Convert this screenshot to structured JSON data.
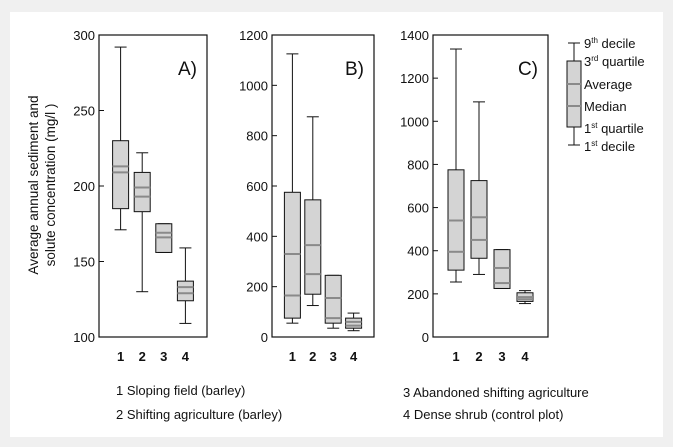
{
  "ylabel_line1": "Average annual sediment and",
  "ylabel_line2": "solute concentration (mg/l )",
  "chart_data": [
    {
      "type": "box",
      "title": "A)",
      "ylim": [
        100,
        300
      ],
      "yticks": [
        100,
        150,
        200,
        250,
        300
      ],
      "categories": [
        "1",
        "2",
        "3",
        "4"
      ],
      "boxes": [
        {
          "d1": 171,
          "q1": 185,
          "median": 209,
          "mean": 213,
          "q3": 230,
          "d9": 292
        },
        {
          "d1": 130,
          "q1": 183,
          "median": 193,
          "mean": 199,
          "q3": 209,
          "d9": 222
        },
        {
          "d1": 156,
          "q1": 156,
          "median": 166,
          "mean": 169,
          "q3": 175,
          "d9": 175
        },
        {
          "d1": 109,
          "q1": 124,
          "median": 129,
          "mean": 133,
          "q3": 137,
          "d9": 159
        }
      ]
    },
    {
      "type": "box",
      "title": "B)",
      "ylim": [
        0,
        1200
      ],
      "yticks": [
        0,
        200,
        400,
        600,
        800,
        1000,
        1200
      ],
      "categories": [
        "1",
        "2",
        "3",
        "4"
      ],
      "boxes": [
        {
          "d1": 55,
          "q1": 75,
          "median": 165,
          "mean": 330,
          "q3": 575,
          "d9": 1125
        },
        {
          "d1": 125,
          "q1": 170,
          "median": 250,
          "mean": 365,
          "q3": 545,
          "d9": 875
        },
        {
          "d1": 35,
          "q1": 55,
          "median": 75,
          "mean": 155,
          "q3": 245,
          "d9": 245
        },
        {
          "d1": 25,
          "q1": 35,
          "median": 45,
          "mean": 60,
          "q3": 75,
          "d9": 95
        }
      ]
    },
    {
      "type": "box",
      "title": "C)",
      "ylim": [
        0,
        1400
      ],
      "yticks": [
        0,
        200,
        400,
        600,
        800,
        1000,
        1200,
        1400
      ],
      "categories": [
        "1",
        "2",
        "3",
        "4"
      ],
      "boxes": [
        {
          "d1": 255,
          "q1": 310,
          "median": 395,
          "mean": 540,
          "q3": 775,
          "d9": 1335
        },
        {
          "d1": 290,
          "q1": 365,
          "median": 450,
          "mean": 555,
          "q3": 725,
          "d9": 1090
        },
        {
          "d1": 225,
          "q1": 225,
          "median": 250,
          "mean": 320,
          "q3": 405,
          "d9": 405
        },
        {
          "d1": 155,
          "q1": 165,
          "median": 175,
          "mean": 185,
          "q3": 205,
          "d9": 215
        }
      ]
    }
  ],
  "key": {
    "d9_base": "9",
    "d9_sup": "th",
    "d9_rest": " decile",
    "q3_base": "3",
    "q3_sup": "rd",
    "q3_rest": " quartile",
    "average": "Average",
    "median": "Median",
    "q1_base": "1",
    "q1_sup": "st",
    "q1_rest": " quartile",
    "d1_base": "1",
    "d1_sup": "st",
    "d1_rest": " decile"
  },
  "legend": [
    "1 Sloping field (barley)",
    "2 Shifting agriculture (barley)",
    "3 Abandoned shifting agriculture",
    "4 Dense shrub (control plot)"
  ],
  "colors": {
    "box_fill": "#d4d4d4",
    "stat_line": "#8a8a8a",
    "frame_bg": "#f0f0f0"
  }
}
